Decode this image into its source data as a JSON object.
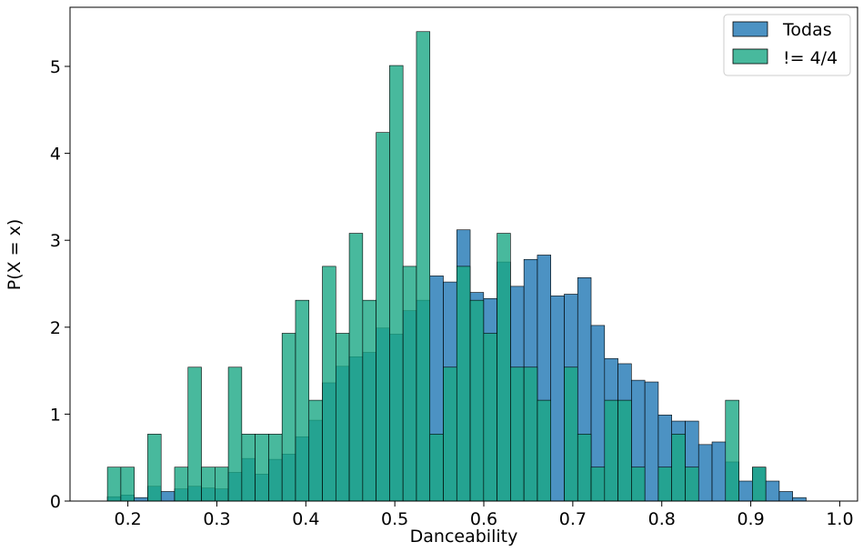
{
  "chart_data": {
    "type": "histogram",
    "xlabel": "Danceability",
    "ylabel": "P(X = x)",
    "xlim": [
      0.135,
      1.02
    ],
    "ylim": [
      0,
      5.68
    ],
    "xticks": [
      0.2,
      0.3,
      0.4,
      0.5,
      0.6,
      0.7,
      0.8,
      0.9,
      1.0
    ],
    "xtick_labels": [
      "0.2",
      "0.3",
      "0.4",
      "0.5",
      "0.6",
      "0.7",
      "0.8",
      "0.9",
      "1.0"
    ],
    "yticks": [
      0,
      1,
      2,
      3,
      4,
      5
    ],
    "ytick_labels": [
      "0",
      "1",
      "2",
      "3",
      "4",
      "5"
    ],
    "legend_position": "top-right",
    "series": [
      {
        "name": "Todas",
        "color": "#1f77b4",
        "bin_width": 0.0151,
        "bin_starts": [
          0.177,
          0.1921,
          0.2072,
          0.2223,
          0.2374,
          0.2525,
          0.2676,
          0.2827,
          0.2978,
          0.3129,
          0.328,
          0.3431,
          0.3582,
          0.3733,
          0.3884,
          0.4035,
          0.4186,
          0.4337,
          0.4488,
          0.4639,
          0.479,
          0.4941,
          0.5092,
          0.5243,
          0.5394,
          0.5545,
          0.5696,
          0.5847,
          0.5998,
          0.6149,
          0.63,
          0.6451,
          0.6602,
          0.6753,
          0.6904,
          0.7055,
          0.7206,
          0.7357,
          0.7508,
          0.7659,
          0.781,
          0.7961,
          0.8112,
          0.8263,
          0.8414,
          0.8565,
          0.8716,
          0.8867,
          0.9018,
          0.9169,
          0.932,
          0.9471,
          0.9622
        ],
        "values": [
          0.05,
          0.07,
          0.04,
          0.17,
          0.11,
          0.14,
          0.17,
          0.15,
          0.14,
          0.33,
          0.49,
          0.31,
          0.48,
          0.54,
          0.74,
          0.93,
          1.36,
          1.55,
          1.66,
          1.71,
          1.99,
          1.92,
          2.19,
          2.31,
          2.59,
          2.52,
          3.12,
          2.4,
          2.33,
          2.75,
          2.47,
          2.78,
          2.83,
          2.36,
          2.38,
          2.57,
          2.02,
          1.64,
          1.58,
          1.39,
          1.37,
          0.99,
          0.92,
          0.92,
          0.65,
          0.68,
          0.45,
          0.23,
          0.39,
          0.23,
          0.11,
          0.04,
          0.0
        ]
      },
      {
        "name": "!= 4/4",
        "color": "#1aa784",
        "bin_width": 0.0151,
        "bin_starts": [
          0.177,
          0.1921,
          0.2072,
          0.2223,
          0.2374,
          0.2525,
          0.2676,
          0.2827,
          0.2978,
          0.3129,
          0.328,
          0.3431,
          0.3582,
          0.3733,
          0.3884,
          0.4035,
          0.4186,
          0.4337,
          0.4488,
          0.4639,
          0.479,
          0.4941,
          0.5092,
          0.5243,
          0.5394,
          0.5545,
          0.5696,
          0.5847,
          0.5998,
          0.6149,
          0.63,
          0.6451,
          0.6602,
          0.6753,
          0.6904,
          0.7055,
          0.7206,
          0.7357,
          0.7508,
          0.7659,
          0.781,
          0.7961,
          0.8112,
          0.8263,
          0.8414,
          0.8565,
          0.8716,
          0.8867,
          0.9018,
          0.9169
        ],
        "values": [
          0.39,
          0.39,
          0.0,
          0.77,
          0.0,
          0.39,
          1.54,
          0.39,
          0.39,
          1.54,
          0.77,
          0.77,
          0.77,
          1.93,
          2.31,
          1.16,
          2.7,
          1.93,
          3.08,
          2.31,
          4.24,
          5.01,
          2.7,
          5.4,
          0.77,
          1.54,
          2.7,
          2.31,
          1.93,
          3.08,
          1.54,
          1.54,
          1.16,
          0.0,
          1.54,
          0.77,
          0.39,
          1.16,
          1.16,
          0.39,
          0.0,
          0.39,
          0.77,
          0.39,
          0.0,
          0.0,
          1.16,
          0.0,
          0.39,
          0.0
        ]
      }
    ]
  }
}
